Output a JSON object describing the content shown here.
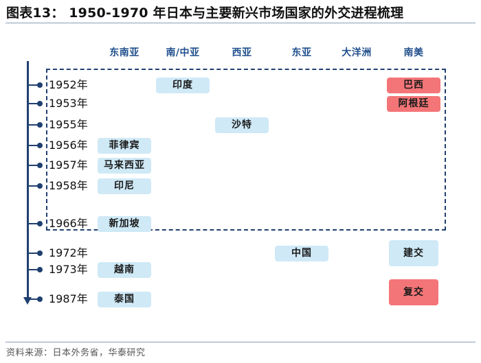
{
  "title": "图表13： 1950-1970 年日本与主要新兴市场国家的外交进程梳理",
  "source": "资料来源：日本外务省，华泰研究",
  "colors": {
    "axis": "#1f3f6f",
    "header_text": "#1f4e8c",
    "pill_blue": "#cfe9f6",
    "pill_red": "#f47577"
  },
  "regions": [
    "东南亚",
    "南/中亚",
    "西亚",
    "东亚",
    "大洋洲",
    "南美"
  ],
  "years": [
    "1952年",
    "1953年",
    "1955年",
    "1956年",
    "1957年",
    "1958年",
    "1966年",
    "1972年",
    "1973年",
    "1987年"
  ],
  "events": [
    {
      "country": "印度",
      "year": "1952年",
      "region": "南/中亚",
      "style": "blue"
    },
    {
      "country": "巴西",
      "year": "1952年",
      "region": "南美",
      "style": "red"
    },
    {
      "country": "阿根廷",
      "year": "1953年",
      "region": "南美",
      "style": "red"
    },
    {
      "country": "沙特",
      "year": "1955年",
      "region": "西亚",
      "style": "blue"
    },
    {
      "country": "菲律宾",
      "year": "1956年",
      "region": "东南亚",
      "style": "blue"
    },
    {
      "country": "马来西亚",
      "year": "1957年",
      "region": "东南亚",
      "style": "blue"
    },
    {
      "country": "印尼",
      "year": "1958年",
      "region": "东南亚",
      "style": "blue"
    },
    {
      "country": "新加坡",
      "year": "1966年",
      "region": "东南亚",
      "style": "blue"
    },
    {
      "country": "中国",
      "year": "1972年",
      "region": "东亚",
      "style": "blue"
    },
    {
      "country": "建交",
      "year": "1972年",
      "region": "南美",
      "style": "blue"
    },
    {
      "country": "越南",
      "year": "1973年",
      "region": "东南亚",
      "style": "blue"
    },
    {
      "country": "泰国",
      "year": "1987年",
      "region": "东南亚",
      "style": "blue"
    },
    {
      "country": "复交",
      "year": "1987年",
      "region": "南美",
      "style": "red"
    }
  ]
}
